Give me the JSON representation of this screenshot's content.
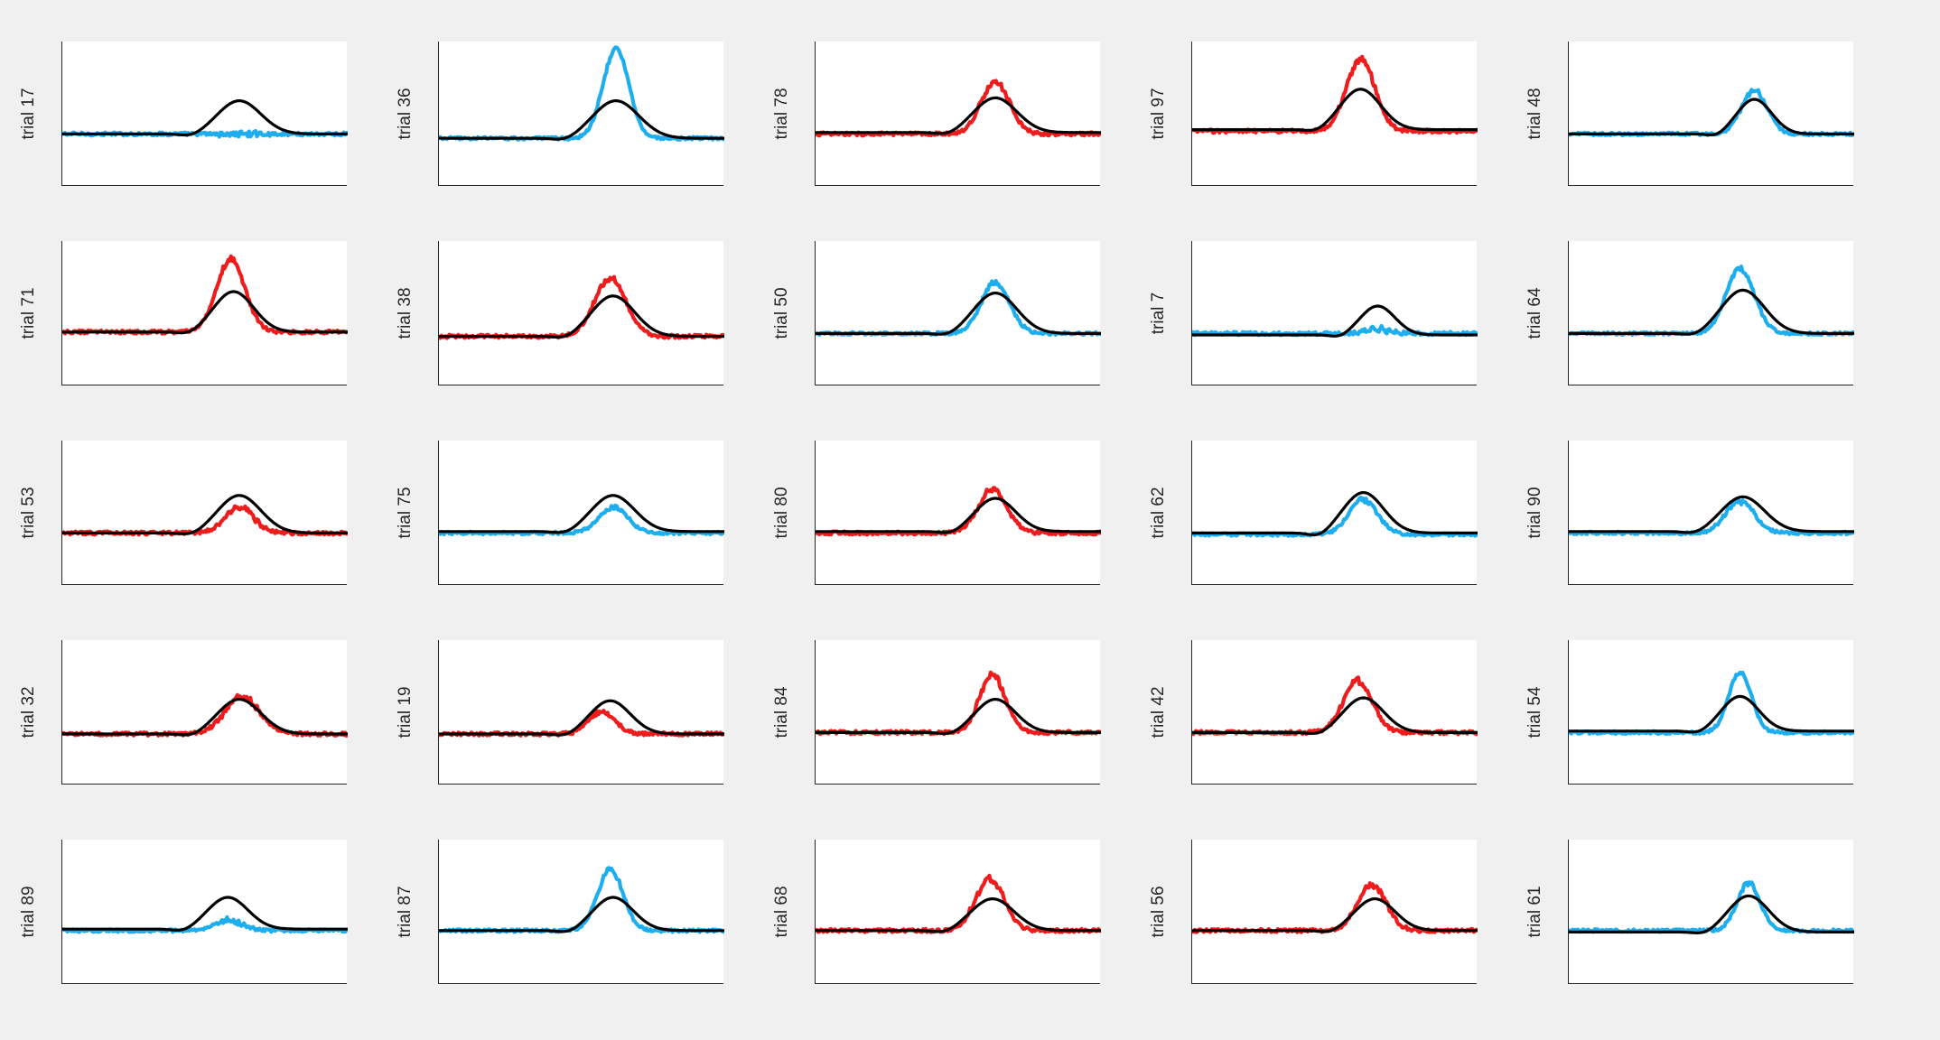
{
  "figure": {
    "background": "#f0f0f0"
  },
  "colors": {
    "red": "#ee1c1c",
    "blue": "#1eaeef",
    "black": "#000000"
  },
  "chart_data": [
    {
      "type": "line",
      "ylabel": "trial 17",
      "series": [
        {
          "color": "blue",
          "baseline": 0.36,
          "peak": 0.0,
          "noise": 0.012
        },
        {
          "color": "black",
          "baseline": 0.36,
          "peak": 0.23,
          "center": 0.62,
          "width": 0.075,
          "dip": 0.02
        }
      ]
    },
    {
      "type": "line",
      "ylabel": "trial 36",
      "series": [
        {
          "color": "blue",
          "baseline": 0.33,
          "peak": 0.62,
          "center": 0.62,
          "width": 0.045,
          "noise": 0.01
        },
        {
          "color": "black",
          "baseline": 0.33,
          "peak": 0.26,
          "center": 0.62,
          "width": 0.08,
          "dip": 0.02
        }
      ]
    },
    {
      "type": "line",
      "ylabel": "trial 78",
      "series": [
        {
          "color": "red",
          "baseline": 0.36,
          "peak": 0.36,
          "center": 0.63,
          "width": 0.05,
          "noise": 0.012
        },
        {
          "color": "black",
          "baseline": 0.37,
          "peak": 0.24,
          "center": 0.63,
          "width": 0.075,
          "dip": 0.02
        }
      ]
    },
    {
      "type": "line",
      "ylabel": "trial 97",
      "series": [
        {
          "color": "red",
          "baseline": 0.38,
          "peak": 0.5,
          "center": 0.59,
          "width": 0.05,
          "noise": 0.012
        },
        {
          "color": "black",
          "baseline": 0.39,
          "peak": 0.28,
          "center": 0.59,
          "width": 0.07,
          "dip": 0.02
        }
      ]
    },
    {
      "type": "line",
      "ylabel": "trial 48",
      "series": [
        {
          "color": "blue",
          "baseline": 0.36,
          "peak": 0.3,
          "center": 0.65,
          "width": 0.045,
          "noise": 0.01
        },
        {
          "color": "black",
          "baseline": 0.36,
          "peak": 0.24,
          "center": 0.65,
          "width": 0.06,
          "dip": 0.02
        }
      ]
    },
    {
      "type": "line",
      "ylabel": "trial 71",
      "series": [
        {
          "color": "red",
          "baseline": 0.37,
          "peak": 0.5,
          "center": 0.59,
          "width": 0.05,
          "noise": 0.012
        },
        {
          "color": "black",
          "baseline": 0.37,
          "peak": 0.28,
          "center": 0.6,
          "width": 0.07,
          "dip": 0.02
        }
      ]
    },
    {
      "type": "line",
      "ylabel": "trial 38",
      "series": [
        {
          "color": "red",
          "baseline": 0.34,
          "peak": 0.4,
          "center": 0.6,
          "width": 0.055,
          "noise": 0.012
        },
        {
          "color": "black",
          "baseline": 0.34,
          "peak": 0.28,
          "center": 0.61,
          "width": 0.075,
          "dip": 0.02
        }
      ]
    },
    {
      "type": "line",
      "ylabel": "trial 50",
      "series": [
        {
          "color": "blue",
          "baseline": 0.36,
          "peak": 0.35,
          "center": 0.63,
          "width": 0.05,
          "noise": 0.01
        },
        {
          "color": "black",
          "baseline": 0.36,
          "peak": 0.28,
          "center": 0.63,
          "width": 0.075,
          "dip": 0.02
        }
      ]
    },
    {
      "type": "line",
      "ylabel": "trial 7",
      "series": [
        {
          "color": "blue",
          "baseline": 0.36,
          "peak": 0.03,
          "center": 0.65,
          "width": 0.04,
          "noise": 0.012
        },
        {
          "color": "black",
          "baseline": 0.35,
          "peak": 0.2,
          "center": 0.65,
          "width": 0.06,
          "dip": 0.02
        }
      ]
    },
    {
      "type": "line",
      "ylabel": "trial 64",
      "series": [
        {
          "color": "blue",
          "baseline": 0.36,
          "peak": 0.45,
          "center": 0.6,
          "width": 0.05,
          "noise": 0.01
        },
        {
          "color": "black",
          "baseline": 0.36,
          "peak": 0.3,
          "center": 0.61,
          "width": 0.075,
          "dip": 0.02
        }
      ]
    },
    {
      "type": "line",
      "ylabel": "trial 53",
      "series": [
        {
          "color": "red",
          "baseline": 0.36,
          "peak": 0.18,
          "center": 0.62,
          "width": 0.05,
          "noise": 0.012
        },
        {
          "color": "black",
          "baseline": 0.36,
          "peak": 0.26,
          "center": 0.62,
          "width": 0.075,
          "dip": 0.02
        }
      ]
    },
    {
      "type": "line",
      "ylabel": "trial 75",
      "series": [
        {
          "color": "blue",
          "baseline": 0.36,
          "peak": 0.18,
          "center": 0.61,
          "width": 0.05,
          "noise": 0.01
        },
        {
          "color": "black",
          "baseline": 0.37,
          "peak": 0.25,
          "center": 0.61,
          "width": 0.075,
          "dip": 0.02
        }
      ]
    },
    {
      "type": "line",
      "ylabel": "trial 80",
      "series": [
        {
          "color": "red",
          "baseline": 0.36,
          "peak": 0.3,
          "center": 0.62,
          "width": 0.05,
          "noise": 0.012
        },
        {
          "color": "black",
          "baseline": 0.37,
          "peak": 0.23,
          "center": 0.63,
          "width": 0.07,
          "dip": 0.02
        }
      ]
    },
    {
      "type": "line",
      "ylabel": "trial 62",
      "series": [
        {
          "color": "blue",
          "baseline": 0.35,
          "peak": 0.24,
          "center": 0.6,
          "width": 0.05,
          "noise": 0.01
        },
        {
          "color": "black",
          "baseline": 0.36,
          "peak": 0.28,
          "center": 0.6,
          "width": 0.07,
          "dip": 0.03
        }
      ]
    },
    {
      "type": "line",
      "ylabel": "trial 90",
      "series": [
        {
          "color": "blue",
          "baseline": 0.36,
          "peak": 0.22,
          "center": 0.6,
          "width": 0.05,
          "noise": 0.01
        },
        {
          "color": "black",
          "baseline": 0.37,
          "peak": 0.24,
          "center": 0.61,
          "width": 0.075,
          "dip": 0.02
        }
      ]
    },
    {
      "type": "line",
      "ylabel": "trial 32",
      "series": [
        {
          "color": "red",
          "baseline": 0.35,
          "peak": 0.26,
          "center": 0.63,
          "width": 0.06,
          "noise": 0.012
        },
        {
          "color": "black",
          "baseline": 0.35,
          "peak": 0.24,
          "center": 0.62,
          "width": 0.075,
          "dip": 0.02
        }
      ]
    },
    {
      "type": "line",
      "ylabel": "trial 19",
      "series": [
        {
          "color": "red",
          "baseline": 0.35,
          "peak": 0.16,
          "center": 0.57,
          "width": 0.045,
          "noise": 0.012
        },
        {
          "color": "black",
          "baseline": 0.35,
          "peak": 0.23,
          "center": 0.6,
          "width": 0.07,
          "dip": 0.02
        }
      ]
    },
    {
      "type": "line",
      "ylabel": "trial 84",
      "series": [
        {
          "color": "red",
          "baseline": 0.36,
          "peak": 0.4,
          "center": 0.62,
          "width": 0.045,
          "noise": 0.012
        },
        {
          "color": "black",
          "baseline": 0.36,
          "peak": 0.23,
          "center": 0.63,
          "width": 0.07,
          "dip": 0.02
        }
      ]
    },
    {
      "type": "line",
      "ylabel": "trial 42",
      "series": [
        {
          "color": "red",
          "baseline": 0.36,
          "peak": 0.36,
          "center": 0.58,
          "width": 0.05,
          "noise": 0.012
        },
        {
          "color": "black",
          "baseline": 0.36,
          "peak": 0.24,
          "center": 0.6,
          "width": 0.07,
          "dip": 0.02
        }
      ]
    },
    {
      "type": "line",
      "ylabel": "trial 54",
      "series": [
        {
          "color": "blue",
          "baseline": 0.36,
          "peak": 0.42,
          "center": 0.6,
          "width": 0.04,
          "noise": 0.01
        },
        {
          "color": "black",
          "baseline": 0.37,
          "peak": 0.24,
          "center": 0.6,
          "width": 0.065,
          "dip": 0.02
        }
      ]
    },
    {
      "type": "line",
      "ylabel": "trial 89",
      "series": [
        {
          "color": "blue",
          "baseline": 0.37,
          "peak": 0.07,
          "center": 0.58,
          "width": 0.05,
          "noise": 0.01
        },
        {
          "color": "black",
          "baseline": 0.38,
          "peak": 0.22,
          "center": 0.58,
          "width": 0.07,
          "dip": 0.02
        }
      ]
    },
    {
      "type": "line",
      "ylabel": "trial 87",
      "series": [
        {
          "color": "blue",
          "baseline": 0.37,
          "peak": 0.42,
          "center": 0.6,
          "width": 0.045,
          "noise": 0.01
        },
        {
          "color": "black",
          "baseline": 0.37,
          "peak": 0.23,
          "center": 0.61,
          "width": 0.07,
          "dip": 0.02
        }
      ]
    },
    {
      "type": "line",
      "ylabel": "trial 68",
      "series": [
        {
          "color": "red",
          "baseline": 0.37,
          "peak": 0.36,
          "center": 0.61,
          "width": 0.05,
          "noise": 0.012
        },
        {
          "color": "black",
          "baseline": 0.37,
          "peak": 0.22,
          "center": 0.62,
          "width": 0.075,
          "dip": 0.02
        }
      ]
    },
    {
      "type": "line",
      "ylabel": "trial 56",
      "series": [
        {
          "color": "red",
          "baseline": 0.37,
          "peak": 0.32,
          "center": 0.63,
          "width": 0.05,
          "noise": 0.012
        },
        {
          "color": "black",
          "baseline": 0.37,
          "peak": 0.22,
          "center": 0.64,
          "width": 0.07,
          "dip": 0.02
        }
      ]
    },
    {
      "type": "line",
      "ylabel": "trial 61",
      "series": [
        {
          "color": "blue",
          "baseline": 0.37,
          "peak": 0.33,
          "center": 0.63,
          "width": 0.04,
          "noise": 0.01
        },
        {
          "color": "black",
          "baseline": 0.36,
          "peak": 0.25,
          "center": 0.63,
          "width": 0.07,
          "dip": 0.02
        }
      ]
    }
  ]
}
